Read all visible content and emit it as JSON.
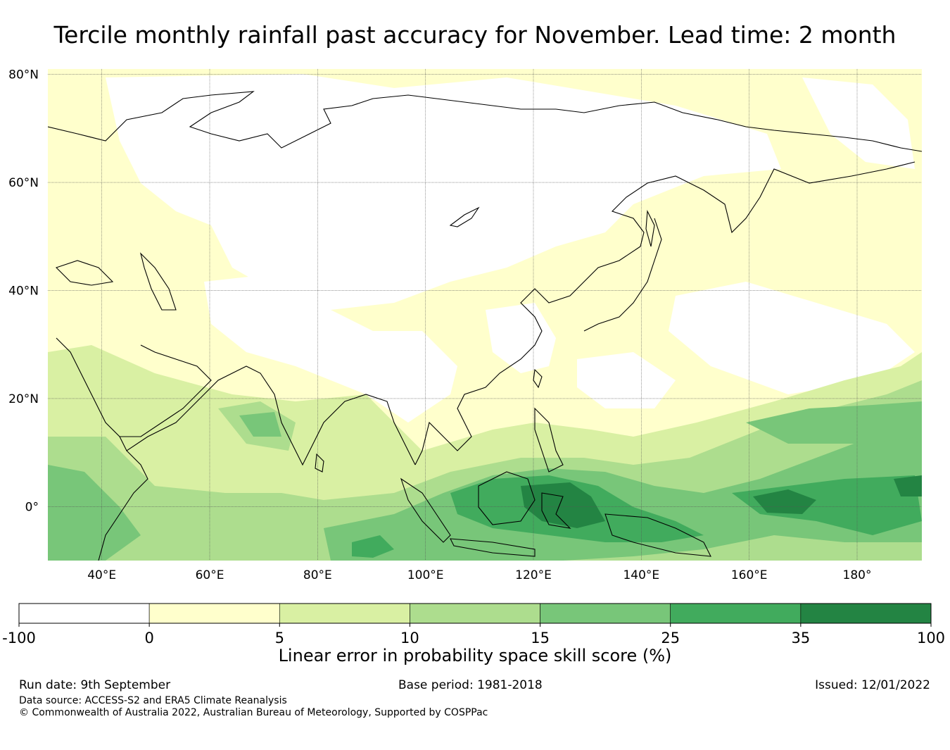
{
  "title": "Tercile monthly rainfall past accuracy for November. Lead time: 2 month",
  "map": {
    "lat_labels": [
      "80°N",
      "60°N",
      "40°N",
      "20°N",
      "0°"
    ],
    "lon_labels": [
      "40°E",
      "60°E",
      "80°E",
      "100°E",
      "120°E",
      "140°E",
      "160°E",
      "180°"
    ],
    "lon_range": [
      30,
      192
    ],
    "lat_range": [
      -10,
      81
    ]
  },
  "colorbar": {
    "title": "Linear error in probability space skill score (%)",
    "tick_labels": [
      "-100",
      "0",
      "5",
      "10",
      "15",
      "25",
      "35",
      "100"
    ],
    "colors": [
      "#ffffff",
      "#ffffcc",
      "#d9f0a3",
      "#addd8e",
      "#78c679",
      "#41ab5d",
      "#238443"
    ]
  },
  "footer": {
    "run_date": "Run date: 9th September",
    "base_period": "Base period: 1981-2018",
    "issued": "Issued: 12/01/2022",
    "data_source": "Data source: ACCESS-S2 and ERA5 Climate Reanalysis",
    "copyright": "© Commonwealth of Australia 2022, Australian Bureau of Meteorology, Supported by COSPPac"
  }
}
